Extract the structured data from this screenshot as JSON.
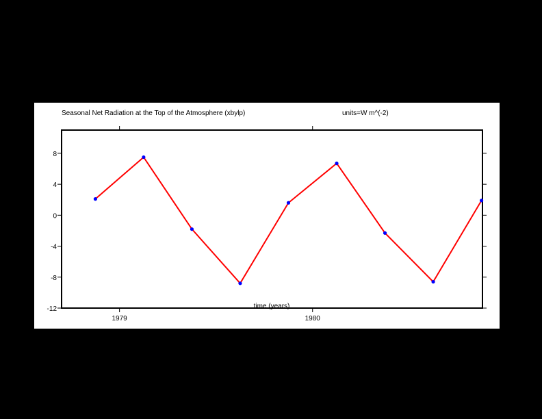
{
  "chart_data": {
    "type": "line",
    "title": "Seasonal Net Radiation at the Top of the Atmosphere (xbylp)",
    "units_label": "units=W m^(-2)",
    "xlabel": "time (years)",
    "ylabel": "",
    "x_ticks": [
      {
        "label": "1979",
        "value": 1979.0
      },
      {
        "label": "1980",
        "value": 1980.0
      }
    ],
    "xlim": [
      1978.7,
      1980.88
    ],
    "ylim": [
      -12,
      11
    ],
    "y_ticks": [
      -12,
      -8,
      -4,
      0,
      4,
      8
    ],
    "grid": false,
    "series": [
      {
        "x": [
          1978.875,
          1979.125,
          1979.375,
          1979.625,
          1979.875,
          1980.125,
          1980.375,
          1980.625,
          1980.875
        ],
        "values": [
          2.1,
          7.5,
          -1.8,
          -8.8,
          1.6,
          6.7,
          -2.3,
          -8.6,
          1.9
        ],
        "line_color": "#ff0000",
        "marker_color": "#0000ff"
      }
    ]
  }
}
